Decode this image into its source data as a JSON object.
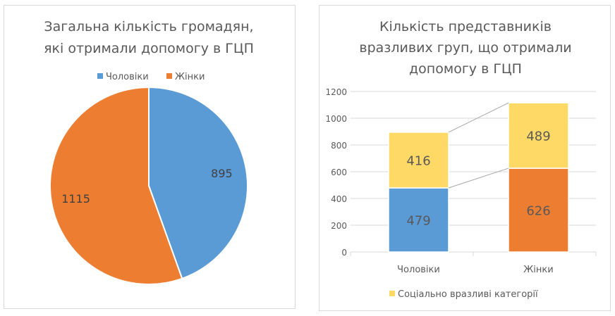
{
  "chart_data": [
    {
      "type": "pie",
      "title": "Загальна кількість громадян, які отримали допомогу в ГЦП",
      "title_lines": [
        "Загальна кількість громадян,",
        "які отримали допомогу в ГЦП"
      ],
      "categories": [
        "Чоловіки",
        "Жінки"
      ],
      "values": [
        895,
        1115
      ],
      "colors": [
        "#5b9bd5",
        "#ed7d31"
      ],
      "legend": "top"
    },
    {
      "type": "bar",
      "stacked": true,
      "title": "Кількість представників вразливих груп, що отримали допомогу в ГЦП",
      "title_lines": [
        "Кількість представників",
        "вразливих груп, що отримали",
        "допомогу в ГЦП"
      ],
      "categories": [
        "Чоловіки",
        "Жінки"
      ],
      "series": [
        {
          "name": "",
          "values": [
            479,
            626
          ],
          "colors": [
            "#5b9bd5",
            "#ed7d31"
          ]
        },
        {
          "name": "Соціально вразливі категорії",
          "values": [
            416,
            489
          ],
          "colors": [
            "#ffd966",
            "#ffd966"
          ]
        }
      ],
      "ylim": [
        0,
        1200
      ],
      "yticks": [
        0,
        200,
        400,
        600,
        800,
        1000,
        1200
      ],
      "grid": true,
      "legend": "bottom",
      "series_lines": true
    }
  ]
}
